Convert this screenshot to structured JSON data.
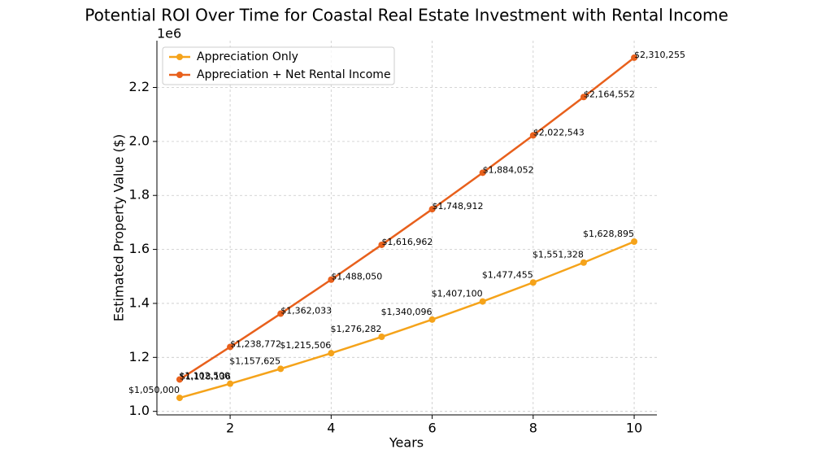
{
  "chart_data": {
    "type": "line",
    "title": "Potential ROI Over Time for Coastal Real Estate Investment with Rental Income",
    "x_label": "Years",
    "y_label": "Estimated Property Value ($)",
    "y_offset_label": "1e6",
    "x": [
      1,
      2,
      3,
      4,
      5,
      6,
      7,
      8,
      9,
      10
    ],
    "series": [
      {
        "name": "Appreciation Only",
        "color": "#f5a31a",
        "values": [
          1050000,
          1102500,
          1157625,
          1215506,
          1276282,
          1340096,
          1407100,
          1477455,
          1551328,
          1628895
        ],
        "value_labels": [
          "$1,050,000",
          "$1,102,500",
          "$1,157,625",
          "$1,215,506",
          "$1,276,282",
          "$1,340,096",
          "$1,407,100",
          "$1,477,455",
          "$1,551,328",
          "$1,628,895"
        ]
      },
      {
        "name": "Appreciation + Net Rental Income",
        "color": "#e8601c",
        "values": [
          1118136,
          1238772,
          1362033,
          1488050,
          1616962,
          1748912,
          1884052,
          2022543,
          2164552,
          2310255
        ],
        "value_labels": [
          "$1,118,136",
          "$1,238,772",
          "$1,362,033",
          "$1,488,050",
          "$1,616,962",
          "$1,748,912",
          "$1,884,052",
          "$2,022,543",
          "$2,164,552",
          "$2,310,255"
        ]
      }
    ],
    "xlim": [
      0.55,
      10.45
    ],
    "ylim": [
      986987,
      2373268
    ],
    "xticks": [
      2,
      4,
      6,
      8,
      10
    ],
    "yticks": [
      {
        "value": 1000000,
        "label": "1.0"
      },
      {
        "value": 1200000,
        "label": "1.2"
      },
      {
        "value": 1400000,
        "label": "1.4"
      },
      {
        "value": 1600000,
        "label": "1.6"
      },
      {
        "value": 1800000,
        "label": "1.8"
      },
      {
        "value": 2000000,
        "label": "2.0"
      },
      {
        "value": 2200000,
        "label": "2.2"
      }
    ],
    "grid": true,
    "legend": "upper-left"
  }
}
